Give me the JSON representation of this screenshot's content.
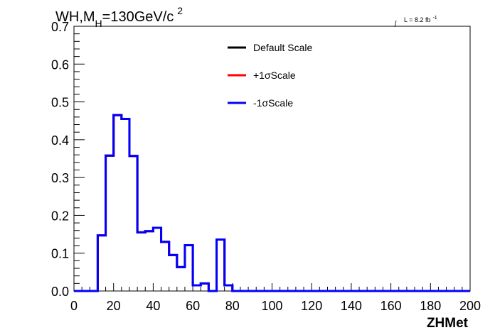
{
  "chart_data": {
    "type": "line",
    "title": {
      "prefix": "WH,M",
      "subscript": "H",
      "main": "=130GeV/c",
      "superscript": "2"
    },
    "luminosity": {
      "symbol": "∫",
      "text": "L = 8.2 fb",
      "superscript": "-1"
    },
    "xlabel": "ZHMet",
    "ylabel": "",
    "xlim": [
      0,
      200
    ],
    "ylim": [
      0,
      0.7
    ],
    "xticks": [
      0,
      20,
      40,
      60,
      80,
      100,
      120,
      140,
      160,
      180,
      200
    ],
    "xtick_labels": [
      "0",
      "20",
      "40",
      "60",
      "80",
      "100",
      "120",
      "140",
      "160",
      "180",
      "200"
    ],
    "yticks": [
      0.0,
      0.1,
      0.2,
      0.3,
      0.4,
      0.5,
      0.6,
      0.7
    ],
    "ytick_labels": [
      "0.0",
      "0.1",
      "0.2",
      "0.3",
      "0.4",
      "0.5",
      "0.6",
      "0.7"
    ],
    "grid": false,
    "legend_position": "top-center",
    "bin_edges": [
      0,
      4,
      8,
      12,
      16,
      20,
      24,
      28,
      32,
      36,
      40,
      44,
      48,
      52,
      56,
      60,
      64,
      68,
      72,
      76,
      80,
      84,
      88,
      92,
      96,
      100,
      104,
      108,
      112,
      116,
      120,
      124,
      128,
      132,
      136,
      140,
      144,
      148,
      152,
      156,
      160,
      164,
      168,
      172,
      176,
      180,
      184,
      188,
      192,
      196,
      200
    ],
    "series": [
      {
        "name": "Default Scale",
        "color": "#000000",
        "values": [
          0,
          0,
          0,
          0.147,
          0.358,
          0.465,
          0.455,
          0.357,
          0.155,
          0.158,
          0.167,
          0.13,
          0.095,
          0.063,
          0.121,
          0.015,
          0.02,
          0,
          0.136,
          0.015,
          0,
          0,
          0,
          0,
          0,
          0,
          0,
          0,
          0,
          0,
          0,
          0,
          0,
          0,
          0,
          0,
          0,
          0,
          0,
          0,
          0,
          0,
          0,
          0,
          0,
          0,
          0,
          0,
          0,
          0
        ]
      },
      {
        "name": "+1σScale",
        "color": "#ff0000",
        "values": [
          0,
          0,
          0,
          0.147,
          0.358,
          0.465,
          0.455,
          0.357,
          0.155,
          0.158,
          0.167,
          0.13,
          0.095,
          0.063,
          0.121,
          0.015,
          0.02,
          0,
          0.136,
          0.015,
          0,
          0,
          0,
          0,
          0,
          0,
          0,
          0,
          0,
          0,
          0,
          0,
          0,
          0,
          0,
          0,
          0,
          0,
          0,
          0,
          0,
          0,
          0,
          0,
          0,
          0,
          0,
          0,
          0,
          0
        ]
      },
      {
        "name": "-1σScale",
        "color": "#0000ff",
        "values": [
          0,
          0,
          0,
          0.147,
          0.358,
          0.465,
          0.455,
          0.357,
          0.155,
          0.158,
          0.167,
          0.13,
          0.095,
          0.063,
          0.121,
          0.015,
          0.02,
          0,
          0.136,
          0.015,
          0,
          0,
          0,
          0,
          0,
          0,
          0,
          0,
          0,
          0,
          0,
          0,
          0,
          0,
          0,
          0,
          0,
          0,
          0,
          0,
          0,
          0,
          0,
          0,
          0,
          0,
          0,
          0,
          0,
          0
        ]
      }
    ]
  }
}
